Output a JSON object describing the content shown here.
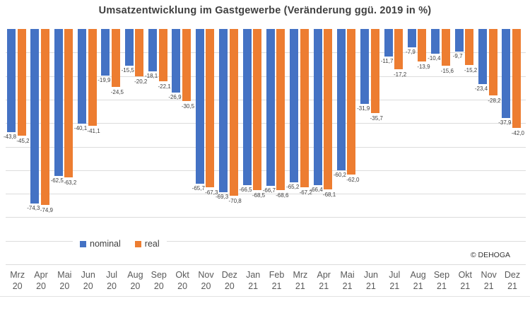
{
  "title": "Umsatzentwicklung im Gastgewerbe (Veränderung ggü. 2019 in %)",
  "copyright": "© DEHOGA",
  "colors": {
    "nominal": "#4472C4",
    "real": "#ED7D31",
    "grid": "#dcdcdc",
    "data_label": "#404040",
    "axis_text": "#595959"
  },
  "chart_data": {
    "type": "bar",
    "title": "Umsatzentwicklung im Gastgewerbe (Veränderung ggü. 2019 in %)",
    "categories": [
      "Mrz 20",
      "Apr 20",
      "Mai 20",
      "Jun 20",
      "Jul 20",
      "Aug 20",
      "Sep 20",
      "Okt 20",
      "Nov 20",
      "Dez 20",
      "Jan 21",
      "Feb 21",
      "Mrz 21",
      "Apr 21",
      "Mai 21",
      "Jun 21",
      "Jul 21",
      "Aug 21",
      "Sep 21",
      "Okt 21",
      "Nov 21",
      "Dez 21"
    ],
    "series": [
      {
        "name": "nominal",
        "color": "#4472C4",
        "values": [
          -43.8,
          -74.3,
          -62.5,
          -40.1,
          -19.9,
          -15.5,
          -18.1,
          -26.9,
          -65.7,
          -69.3,
          -66.5,
          -66.7,
          -65.2,
          -66.4,
          -60.2,
          -31.9,
          -11.7,
          -7.9,
          -10.4,
          -9.7,
          -23.4,
          -37.9
        ]
      },
      {
        "name": "real",
        "color": "#ED7D31",
        "values": [
          -45.2,
          -74.9,
          -63.2,
          -41.1,
          -24.5,
          -20.2,
          -22.1,
          -30.5,
          -67.3,
          -70.8,
          -68.5,
          -68.6,
          -67.2,
          -68.1,
          -62.0,
          -35.7,
          -17.2,
          -13.9,
          -15.6,
          -15.2,
          -28.2,
          -42.0
        ]
      }
    ],
    "ylim": [
      -100,
      0
    ],
    "gridline_step": 10,
    "grid": true,
    "y_axis_labels": false,
    "data_labels": true,
    "decimal_separator": ",",
    "legend_position": "bottom-left",
    "xlabel": "",
    "ylabel": ""
  }
}
